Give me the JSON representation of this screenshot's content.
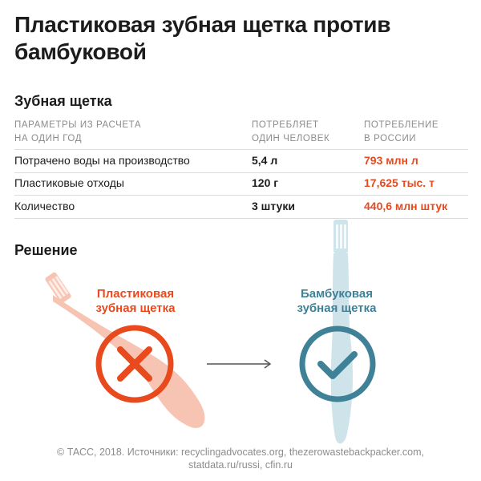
{
  "title": "Пластиковая зубная щетка против бамбуковой",
  "section_toothbrush": "Зубная щетка",
  "table": {
    "headers": [
      [
        "Параметры из расчета",
        "на один год"
      ],
      [
        "Потребляет",
        "один человек"
      ],
      [
        "Потребление",
        "в России"
      ]
    ],
    "rows": [
      {
        "param": "Потрачено воды на производство",
        "person": "5,4 л",
        "russia": "793 млн л"
      },
      {
        "param": "Пластиковые отходы",
        "person": "120 г",
        "russia": "17,625 тыс. т"
      },
      {
        "param": "Количество",
        "person": "3 штуки",
        "russia": "440,6 млн штук"
      }
    ]
  },
  "section_solution": "Решение",
  "plastic_label": [
    "Пластиковая",
    "зубная щетка"
  ],
  "bamboo_label": [
    "Бамбуковая",
    "зубная щетка"
  ],
  "footer": [
    "© ТАСС, 2018. Источники: recyclingadvocates.org, thezerowastebackpacker.com,",
    "statdata.ru/russi, cfin.ru"
  ],
  "colors": {
    "accent_red": "#e8491d",
    "accent_teal": "#3f8197",
    "plastic_brush": "#f7c4b3",
    "bamboo_brush": "#cfe3ea"
  },
  "icons": [
    "cross-icon",
    "check-icon",
    "arrow-icon",
    "plastic-toothbrush-icon",
    "bamboo-toothbrush-icon"
  ]
}
